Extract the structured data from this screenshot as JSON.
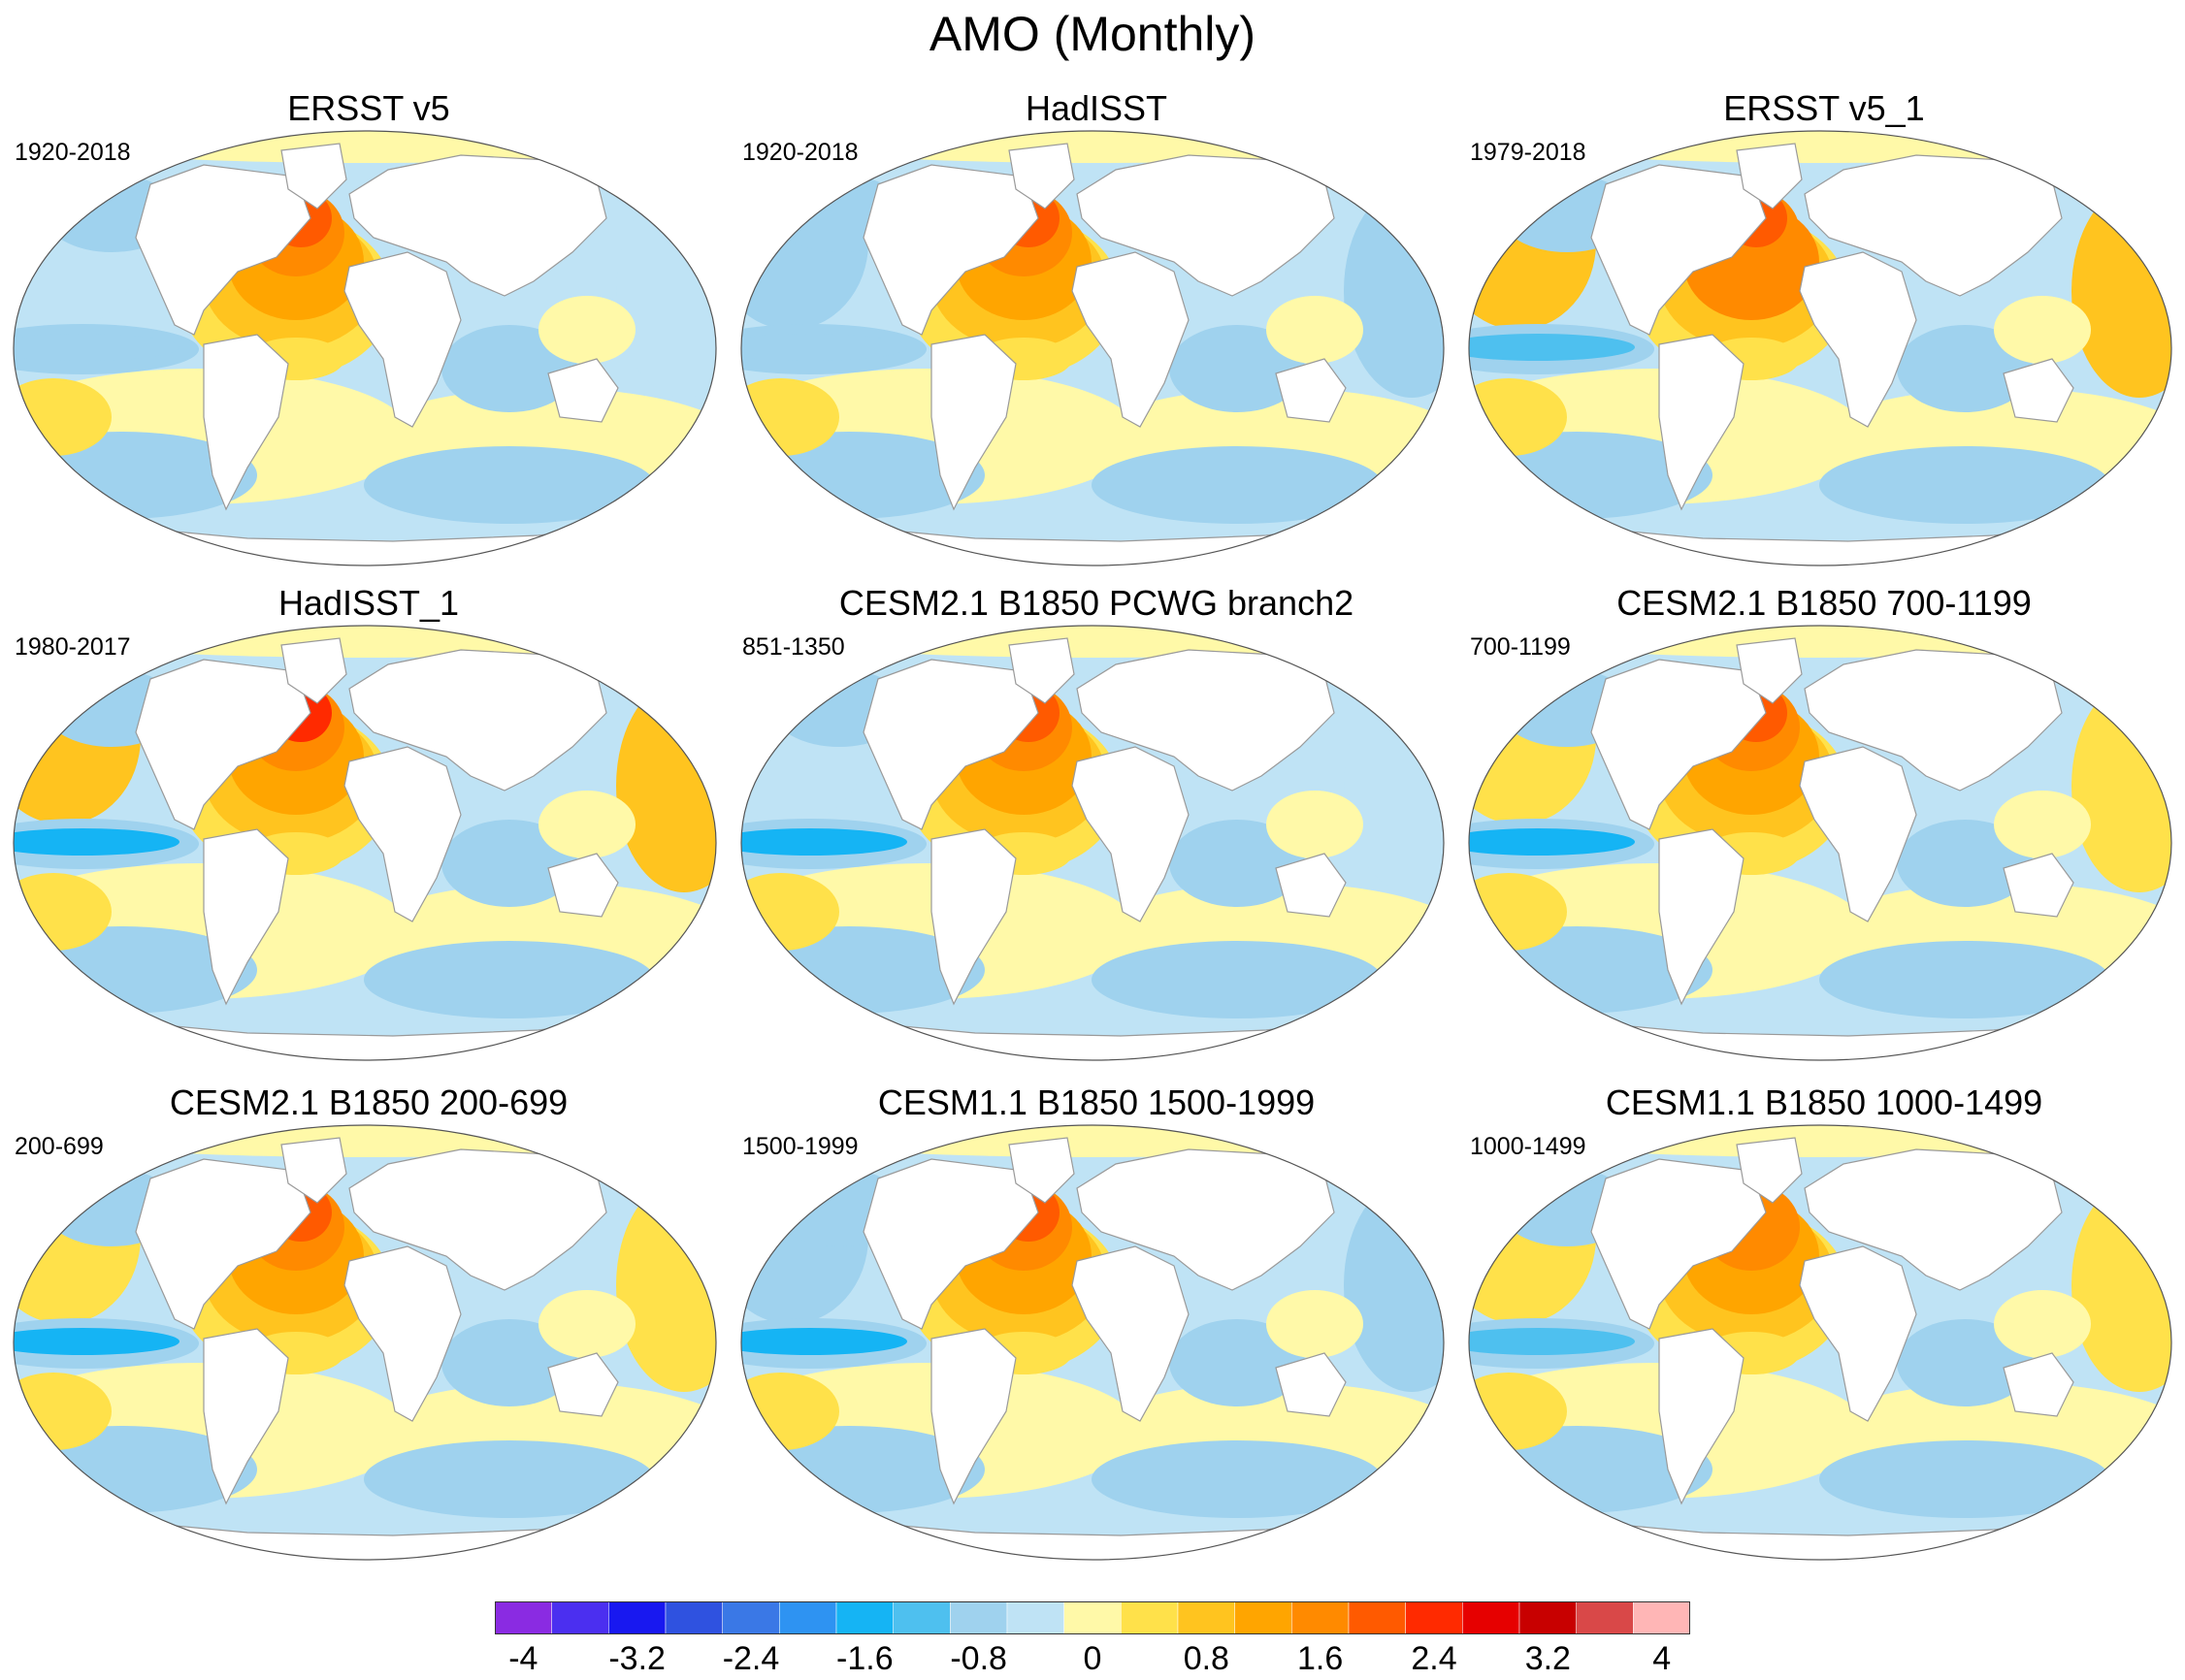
{
  "title": "AMO (Monthly)",
  "panels": [
    {
      "title": "ERSST v5",
      "period": "1920-2018"
    },
    {
      "title": "HadISST",
      "period": "1920-2018"
    },
    {
      "title": "ERSST v5_1",
      "period": "1979-2018"
    },
    {
      "title": "HadISST_1",
      "period": "1980-2017"
    },
    {
      "title": "CESM2.1 B1850 PCWG branch2",
      "period": "851-1350"
    },
    {
      "title": "CESM2.1 B1850 700-1199",
      "period": "700-1199"
    },
    {
      "title": "CESM2.1 B1850 200-699",
      "period": "200-699"
    },
    {
      "title": "CESM1.1 B1850 1500-1999",
      "period": "1500-1999"
    },
    {
      "title": "CESM1.1 B1850 1000-1499",
      "period": "1000-1499"
    }
  ],
  "colorbar": {
    "colors": [
      "#8a2be2",
      "#4b2ff0",
      "#1818f0",
      "#2f52e0",
      "#3a78e6",
      "#2e93f2",
      "#15b4f4",
      "#4ec0ef",
      "#9fd2ee",
      "#bfe3f5",
      "#fff9a8",
      "#ffe14a",
      "#ffc41f",
      "#ffa500",
      "#ff8a00",
      "#ff5a00",
      "#ff2a00",
      "#e60000",
      "#c80000",
      "#d94848",
      "#ffb6b6"
    ],
    "labels": [
      "-4",
      "-3.2",
      "-2.4",
      "-1.6",
      "-0.8",
      "0",
      "0.8",
      "1.6",
      "2.4",
      "3.2",
      "4"
    ]
  }
}
